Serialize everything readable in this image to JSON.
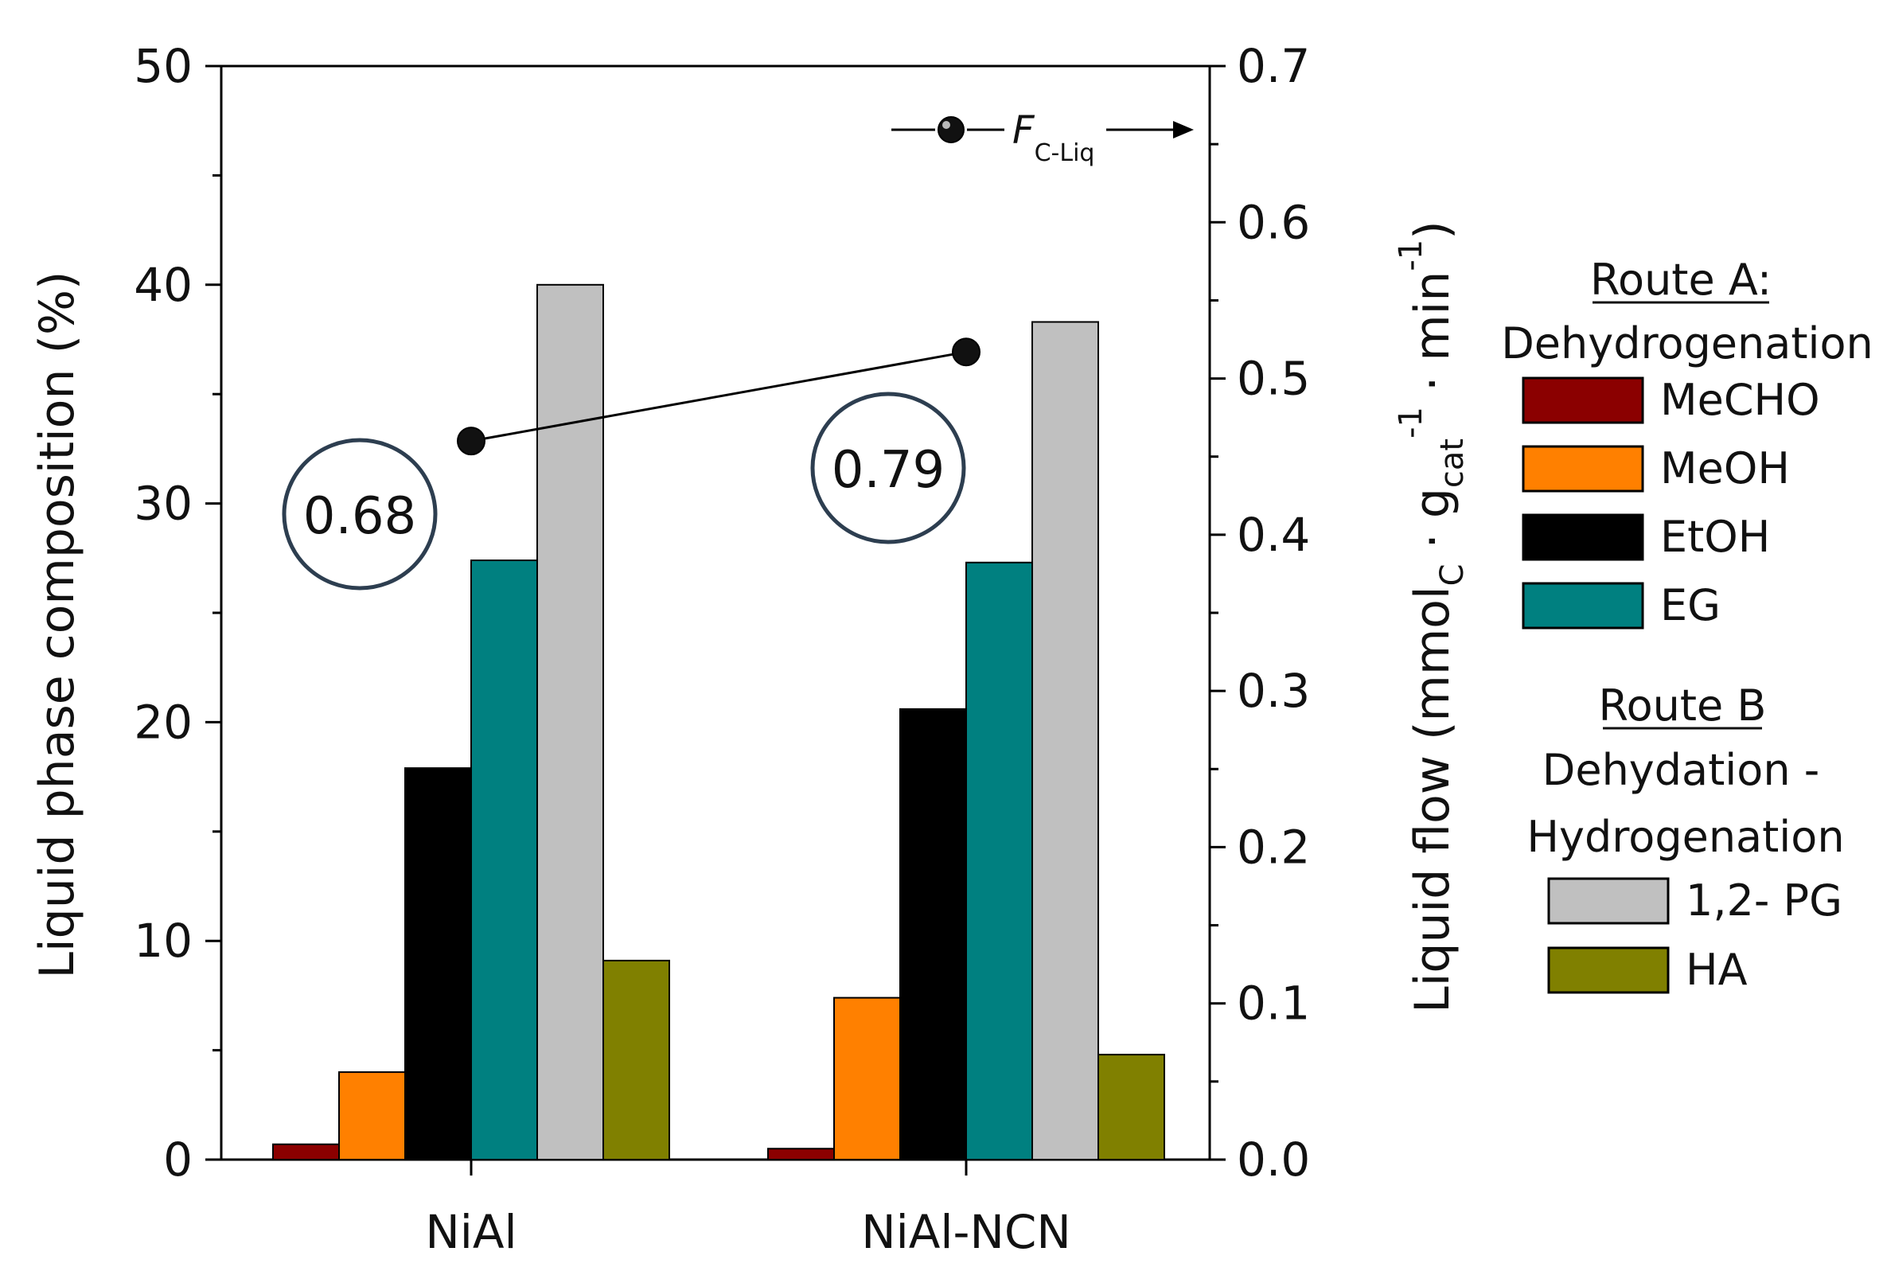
{
  "chart_data": {
    "type": "bar",
    "categories": [
      "NiAl",
      "NiAl-NCN"
    ],
    "series": [
      {
        "name": "MeCHO",
        "color": "#8b0000",
        "values": [
          0.7,
          0.5
        ]
      },
      {
        "name": "MeOH",
        "color": "#ff8000",
        "values": [
          4.0,
          7.4
        ]
      },
      {
        "name": "EtOH",
        "color": "#000000",
        "values": [
          17.9,
          20.6
        ]
      },
      {
        "name": "EG",
        "color": "#008080",
        "values": [
          27.4,
          27.3
        ]
      },
      {
        "name": "1,2- PG",
        "color": "#c0c0c0",
        "values": [
          40.0,
          38.3
        ]
      },
      {
        "name": "HA",
        "color": "#808000",
        "values": [
          9.1,
          4.8
        ]
      }
    ],
    "ylabel": "Liquid phase composition (%)",
    "ylim": [
      0,
      50
    ],
    "yticks": [
      "0",
      "10",
      "20",
      "30",
      "40",
      "50"
    ],
    "y2label": {
      "main": "Liquid flow (mmol",
      "sub_c": "C",
      "mid1": " · g",
      "sub_cat": "cat",
      "sup1": "-1",
      "mid2": " · min",
      "sup2": "-1",
      "close": ")"
    },
    "y2lim": [
      0,
      0.7
    ],
    "y2ticks": [
      "0.0",
      "0.1",
      "0.2",
      "0.3",
      "0.4",
      "0.5",
      "0.6",
      "0.7"
    ],
    "line_series": {
      "name": "F",
      "name_sub": "C-Liq",
      "values": [
        0.46,
        0.517
      ],
      "annotations": [
        "0.68",
        "0.79"
      ]
    },
    "legend": {
      "group_a_title": "Route A:",
      "group_a_subtitle": "Dehydrogenation",
      "group_b_title": "Route B",
      "group_b_subtitle_1": "Dehydation -",
      "group_b_subtitle_2": "Hydrogenation"
    }
  }
}
